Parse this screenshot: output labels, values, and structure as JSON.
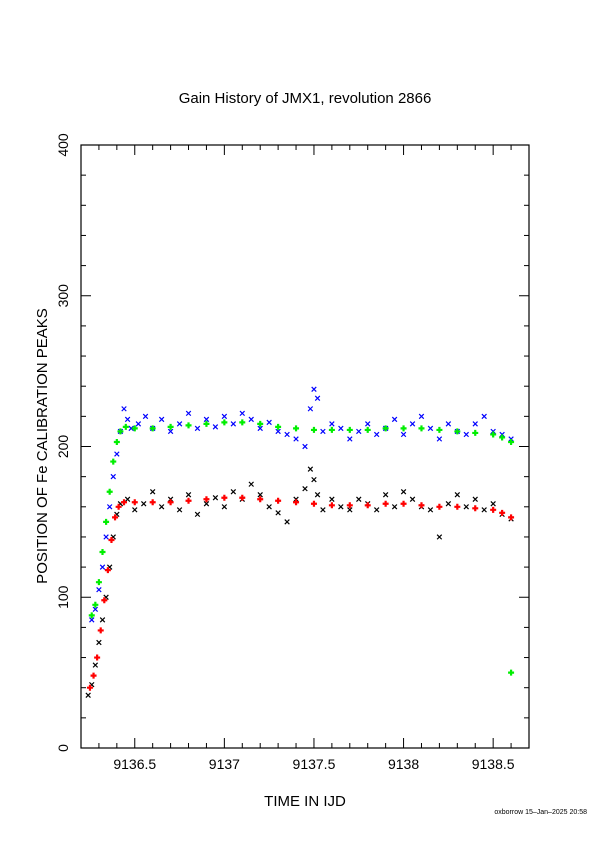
{
  "chart_data": {
    "type": "scatter",
    "title": "Gain History of JMX1, revolution 2866",
    "xlabel": "TIME IN IJD",
    "ylabel": "POSITION OF Fe CALIBRATION PEAKS",
    "xlim": [
      9136.2,
      9138.7
    ],
    "ylim": [
      0,
      400
    ],
    "x_ticks": [
      9136.5,
      9137,
      9137.5,
      9138,
      9138.5
    ],
    "x_tick_labels": [
      "9136.5",
      "9137",
      "9137.5",
      "9138",
      "9138.5"
    ],
    "y_ticks": [
      0,
      100,
      200,
      300,
      400
    ],
    "y_tick_labels": [
      "0",
      "100",
      "200",
      "300",
      "400"
    ],
    "grid": false,
    "legend": "none",
    "series": [
      {
        "marker": "x",
        "color": "#0000ff",
        "points": [
          [
            9136.26,
            85
          ],
          [
            9136.28,
            92
          ],
          [
            9136.3,
            105
          ],
          [
            9136.32,
            120
          ],
          [
            9136.34,
            140
          ],
          [
            9136.36,
            160
          ],
          [
            9136.38,
            180
          ],
          [
            9136.4,
            195
          ],
          [
            9136.42,
            210
          ],
          [
            9136.44,
            225
          ],
          [
            9136.46,
            218
          ],
          [
            9136.48,
            212
          ],
          [
            9136.52,
            215
          ],
          [
            9136.56,
            220
          ],
          [
            9136.6,
            212
          ],
          [
            9136.65,
            218
          ],
          [
            9136.7,
            210
          ],
          [
            9136.75,
            215
          ],
          [
            9136.8,
            222
          ],
          [
            9136.85,
            212
          ],
          [
            9136.9,
            218
          ],
          [
            9136.95,
            213
          ],
          [
            9137.0,
            220
          ],
          [
            9137.05,
            215
          ],
          [
            9137.1,
            222
          ],
          [
            9137.15,
            218
          ],
          [
            9137.2,
            212
          ],
          [
            9137.25,
            216
          ],
          [
            9137.3,
            210
          ],
          [
            9137.35,
            208
          ],
          [
            9137.4,
            205
          ],
          [
            9137.45,
            200
          ],
          [
            9137.48,
            225
          ],
          [
            9137.5,
            238
          ],
          [
            9137.52,
            232
          ],
          [
            9137.55,
            210
          ],
          [
            9137.6,
            215
          ],
          [
            9137.65,
            212
          ],
          [
            9137.7,
            205
          ],
          [
            9137.75,
            210
          ],
          [
            9137.8,
            215
          ],
          [
            9137.85,
            208
          ],
          [
            9137.9,
            212
          ],
          [
            9137.95,
            218
          ],
          [
            9138.0,
            208
          ],
          [
            9138.05,
            215
          ],
          [
            9138.1,
            220
          ],
          [
            9138.15,
            212
          ],
          [
            9138.2,
            205
          ],
          [
            9138.25,
            215
          ],
          [
            9138.3,
            210
          ],
          [
            9138.35,
            208
          ],
          [
            9138.4,
            215
          ],
          [
            9138.45,
            220
          ],
          [
            9138.5,
            210
          ],
          [
            9138.55,
            208
          ],
          [
            9138.6,
            205
          ]
        ]
      },
      {
        "marker": "x",
        "color": "#000000",
        "points": [
          [
            9136.24,
            35
          ],
          [
            9136.26,
            42
          ],
          [
            9136.28,
            55
          ],
          [
            9136.3,
            70
          ],
          [
            9136.32,
            85
          ],
          [
            9136.34,
            100
          ],
          [
            9136.36,
            120
          ],
          [
            9136.38,
            140
          ],
          [
            9136.4,
            155
          ],
          [
            9136.42,
            162
          ],
          [
            9136.46,
            165
          ],
          [
            9136.5,
            158
          ],
          [
            9136.55,
            162
          ],
          [
            9136.6,
            170
          ],
          [
            9136.65,
            160
          ],
          [
            9136.7,
            165
          ],
          [
            9136.75,
            158
          ],
          [
            9136.8,
            168
          ],
          [
            9136.85,
            155
          ],
          [
            9136.9,
            162
          ],
          [
            9136.95,
            166
          ],
          [
            9137.0,
            160
          ],
          [
            9137.05,
            170
          ],
          [
            9137.1,
            165
          ],
          [
            9137.15,
            175
          ],
          [
            9137.2,
            168
          ],
          [
            9137.25,
            160
          ],
          [
            9137.3,
            156
          ],
          [
            9137.35,
            150
          ],
          [
            9137.4,
            165
          ],
          [
            9137.45,
            172
          ],
          [
            9137.48,
            185
          ],
          [
            9137.5,
            178
          ],
          [
            9137.52,
            168
          ],
          [
            9137.55,
            158
          ],
          [
            9137.6,
            165
          ],
          [
            9137.65,
            160
          ],
          [
            9137.7,
            158
          ],
          [
            9137.75,
            165
          ],
          [
            9137.8,
            162
          ],
          [
            9137.85,
            158
          ],
          [
            9137.9,
            168
          ],
          [
            9137.95,
            160
          ],
          [
            9138.0,
            170
          ],
          [
            9138.05,
            165
          ],
          [
            9138.1,
            160
          ],
          [
            9138.15,
            158
          ],
          [
            9138.2,
            140
          ],
          [
            9138.25,
            162
          ],
          [
            9138.3,
            168
          ],
          [
            9138.35,
            160
          ],
          [
            9138.4,
            165
          ],
          [
            9138.45,
            158
          ],
          [
            9138.5,
            162
          ],
          [
            9138.55,
            155
          ],
          [
            9138.6,
            152
          ]
        ]
      },
      {
        "marker": "+",
        "color": "#00ee00",
        "points": [
          [
            9136.26,
            88
          ],
          [
            9136.28,
            95
          ],
          [
            9136.3,
            110
          ],
          [
            9136.32,
            130
          ],
          [
            9136.34,
            150
          ],
          [
            9136.36,
            170
          ],
          [
            9136.38,
            190
          ],
          [
            9136.4,
            203
          ],
          [
            9136.42,
            210
          ],
          [
            9136.45,
            213
          ],
          [
            9136.5,
            212
          ],
          [
            9136.6,
            212
          ],
          [
            9136.7,
            213
          ],
          [
            9136.8,
            214
          ],
          [
            9136.9,
            215
          ],
          [
            9137.0,
            216
          ],
          [
            9137.1,
            216
          ],
          [
            9137.2,
            215
          ],
          [
            9137.3,
            213
          ],
          [
            9137.4,
            212
          ],
          [
            9137.5,
            211
          ],
          [
            9137.6,
            211
          ],
          [
            9137.7,
            211
          ],
          [
            9137.8,
            211
          ],
          [
            9137.9,
            212
          ],
          [
            9138.0,
            212
          ],
          [
            9138.1,
            212
          ],
          [
            9138.2,
            211
          ],
          [
            9138.3,
            210
          ],
          [
            9138.4,
            209
          ],
          [
            9138.5,
            208
          ],
          [
            9138.55,
            206
          ],
          [
            9138.6,
            203
          ],
          [
            9138.6,
            50
          ]
        ]
      },
      {
        "marker": "+",
        "color": "#ff0000",
        "points": [
          [
            9136.25,
            40
          ],
          [
            9136.27,
            48
          ],
          [
            9136.29,
            60
          ],
          [
            9136.31,
            78
          ],
          [
            9136.33,
            98
          ],
          [
            9136.35,
            118
          ],
          [
            9136.37,
            138
          ],
          [
            9136.39,
            153
          ],
          [
            9136.41,
            160
          ],
          [
            9136.44,
            163
          ],
          [
            9136.5,
            163
          ],
          [
            9136.6,
            163
          ],
          [
            9136.7,
            163
          ],
          [
            9136.8,
            164
          ],
          [
            9136.9,
            165
          ],
          [
            9137.0,
            166
          ],
          [
            9137.1,
            166
          ],
          [
            9137.2,
            165
          ],
          [
            9137.3,
            164
          ],
          [
            9137.4,
            163
          ],
          [
            9137.5,
            162
          ],
          [
            9137.6,
            161
          ],
          [
            9137.7,
            161
          ],
          [
            9137.8,
            161
          ],
          [
            9137.9,
            162
          ],
          [
            9138.0,
            162
          ],
          [
            9138.1,
            161
          ],
          [
            9138.2,
            160
          ],
          [
            9138.3,
            160
          ],
          [
            9138.4,
            159
          ],
          [
            9138.5,
            158
          ],
          [
            9138.55,
            156
          ],
          [
            9138.6,
            153
          ]
        ]
      }
    ]
  },
  "footer": {
    "credit": "oxborrow 15–Jan–2025 20:58"
  }
}
